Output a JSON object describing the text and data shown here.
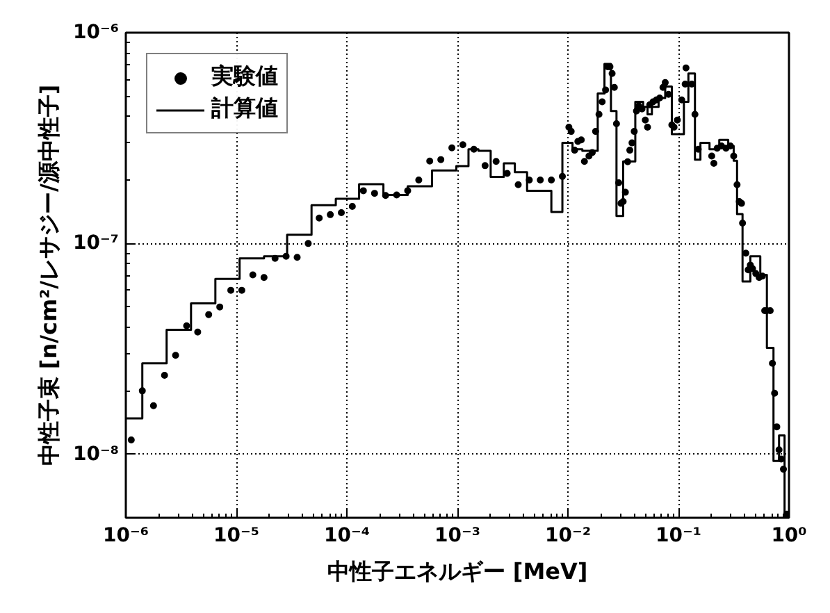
{
  "chart_data": {
    "type": "scatter",
    "xlabel": "中性子エネルギー [MeV]",
    "ylabel": "中性子束 [n/cm²/レサジー/源中性子]",
    "log": "xy",
    "xlim": [
      1e-06,
      1
    ],
    "ylim": [
      5e-09,
      1e-06
    ],
    "xticks": [
      {
        "value": 1e-06,
        "label": "10⁻⁶"
      },
      {
        "value": 1e-05,
        "label": "10⁻⁵"
      },
      {
        "value": 0.0001,
        "label": "10⁻⁴"
      },
      {
        "value": 0.001,
        "label": "10⁻³"
      },
      {
        "value": 0.01,
        "label": "10⁻²"
      },
      {
        "value": 0.1,
        "label": "10⁻¹"
      },
      {
        "value": 1,
        "label": "10⁰"
      }
    ],
    "yticks": [
      {
        "value": 1e-08,
        "label": "10⁻⁸"
      },
      {
        "value": 1e-07,
        "label": "10⁻⁷"
      },
      {
        "value": 1e-06,
        "label": "10⁻⁶"
      }
    ],
    "grid": true,
    "legend": "top left",
    "series": [
      {
        "name": "実験値",
        "marker": "circle",
        "color": "#000000",
        "x": [
          1.12e-06,
          1.41e-06,
          1.78e-06,
          2.24e-06,
          2.82e-06,
          3.55e-06,
          4.47e-06,
          5.62e-06,
          7.08e-06,
          8.91e-06,
          1.12e-05,
          1.41e-05,
          1.78e-05,
          2.24e-05,
          2.82e-05,
          3.55e-05,
          4.47e-05,
          5.62e-05,
          7.08e-05,
          8.91e-05,
          0.000112,
          0.000141,
          0.000178,
          0.000224,
          0.000282,
          0.000355,
          0.000447,
          0.000562,
          0.000708,
          0.000891,
          0.00112,
          0.00141,
          0.00178,
          0.00224,
          0.00282,
          0.00355,
          0.00447,
          0.00562,
          0.00708,
          0.00891,
          0.0102,
          0.0107,
          0.0115,
          0.0123,
          0.0132,
          0.0141,
          0.0155,
          0.0166,
          0.0178,
          0.0191,
          0.0204,
          0.0219,
          0.0229,
          0.024,
          0.0251,
          0.0263,
          0.0275,
          0.0288,
          0.0302,
          0.0316,
          0.0331,
          0.0347,
          0.0363,
          0.038,
          0.0398,
          0.0417,
          0.0437,
          0.0468,
          0.0501,
          0.0525,
          0.055,
          0.0589,
          0.0631,
          0.0676,
          0.0724,
          0.0759,
          0.0813,
          0.0871,
          0.0912,
          0.0977,
          0.107,
          0.115,
          0.117,
          0.132,
          0.141,
          0.151,
          0.2,
          0.209,
          0.224,
          0.245,
          0.269,
          0.295,
          0.316,
          0.339,
          0.355,
          0.372,
          0.38,
          0.407,
          0.427,
          0.447,
          0.468,
          0.501,
          0.537,
          0.575,
          0.603,
          0.631,
          0.676,
          0.708,
          0.741,
          0.776,
          0.813,
          0.851,
          0.891,
          0.955
        ],
        "values": [
          1.17e-08,
          2e-08,
          1.7e-08,
          2.37e-08,
          2.95e-08,
          4.07e-08,
          3.8e-08,
          4.6e-08,
          5e-08,
          6e-08,
          6e-08,
          7.1e-08,
          6.9e-08,
          8.5e-08,
          8.7e-08,
          8.6e-08,
          1e-07,
          1.32e-07,
          1.37e-07,
          1.4e-07,
          1.5e-07,
          1.78e-07,
          1.73e-07,
          1.69e-07,
          1.7e-07,
          1.78e-07,
          2e-07,
          2.46e-07,
          2.5e-07,
          2.84e-07,
          2.94e-07,
          2.8e-07,
          2.34e-07,
          2.45e-07,
          2.15e-07,
          1.9e-07,
          2e-07,
          2e-07,
          2e-07,
          2.08e-07,
          3.56e-07,
          3.4e-07,
          2.77e-07,
          3.05e-07,
          3.1e-07,
          2.45e-07,
          2.6e-07,
          2.7e-07,
          3.4e-07,
          4.1e-07,
          4.7e-07,
          5.35e-07,
          6.9e-07,
          6.9e-07,
          6.4e-07,
          5.5e-07,
          3.7e-07,
          1.94e-07,
          1.55e-07,
          1.58e-07,
          1.75e-07,
          2.44e-07,
          2.77e-07,
          3e-07,
          3.4e-07,
          4.25e-07,
          4.5e-07,
          4.35e-07,
          3.85e-07,
          3.56e-07,
          4.55e-07,
          4.7e-07,
          4.8e-07,
          4.9e-07,
          5.5e-07,
          5.8e-07,
          5.1e-07,
          3.65e-07,
          3.56e-07,
          3.85e-07,
          4.8e-07,
          5.7e-07,
          6.8e-07,
          5.7e-07,
          4.1e-07,
          2.8e-07,
          2.6e-07,
          2.4e-07,
          2.83e-07,
          2.9e-07,
          2.83e-07,
          2.9e-07,
          2.6e-07,
          1.9e-07,
          1.58e-07,
          1.55e-07,
          1.25e-07,
          9e-08,
          7.5e-08,
          7.9e-08,
          7.6e-08,
          7.2e-08,
          6.9e-08,
          7e-08,
          4.8e-08,
          4.8e-08,
          4.8e-08,
          2.7e-08,
          1.95e-08,
          1.35e-08,
          1.05e-08,
          9.5e-09,
          8.5e-09,
          5.2e-09
        ]
      },
      {
        "name": "計算値",
        "type": "step",
        "color": "#000000",
        "line_style": "solid",
        "x": [
          1e-06,
          1.41e-06,
          2.34e-06,
          3.89e-06,
          6.46e-06,
          1.07e-05,
          1.78e-05,
          2.88e-05,
          4.79e-05,
          7.94e-05,
          0.000129,
          0.000214,
          0.000355,
          0.000589,
          0.000977,
          0.00126,
          0.00155,
          0.002,
          0.00263,
          0.00331,
          0.00427,
          0.00708,
          0.00891,
          0.011,
          0.0135,
          0.0186,
          0.0214,
          0.0245,
          0.0275,
          0.0316,
          0.0407,
          0.0479,
          0.0525,
          0.0575,
          0.0661,
          0.0759,
          0.0871,
          0.112,
          0.123,
          0.141,
          0.158,
          0.191,
          0.234,
          0.282,
          0.316,
          0.339,
          0.38,
          0.447,
          0.55,
          0.631,
          0.724,
          0.813,
          0.912,
          0.977
        ],
        "values": [
          1.48e-08,
          2.7e-08,
          3.9e-08,
          5.2e-08,
          6.8e-08,
          8.5e-08,
          8.7e-08,
          1.1e-07,
          1.52e-07,
          1.63e-07,
          1.91e-07,
          1.7e-07,
          1.87e-07,
          2.22e-07,
          2.33e-07,
          2.8e-07,
          2.75e-07,
          2.07e-07,
          2.4e-07,
          2.18e-07,
          1.78e-07,
          1.41e-07,
          3e-07,
          2.8e-07,
          2.75e-07,
          5.15e-07,
          7.1e-07,
          4.25e-07,
          1.35e-07,
          2.45e-07,
          4.7e-07,
          4.45e-07,
          4.1e-07,
          4.45e-07,
          4.9e-07,
          5.55e-07,
          3.3e-07,
          4.7e-07,
          6.4e-07,
          2.5e-07,
          3e-07,
          2.8e-07,
          3.1e-07,
          2.9e-07,
          2.47e-07,
          1.38e-07,
          6.6e-08,
          8.7e-08,
          7.1e-08,
          3.2e-08,
          9.3e-09,
          1.23e-08,
          5.1e-09,
          5.1e-09
        ]
      }
    ]
  }
}
